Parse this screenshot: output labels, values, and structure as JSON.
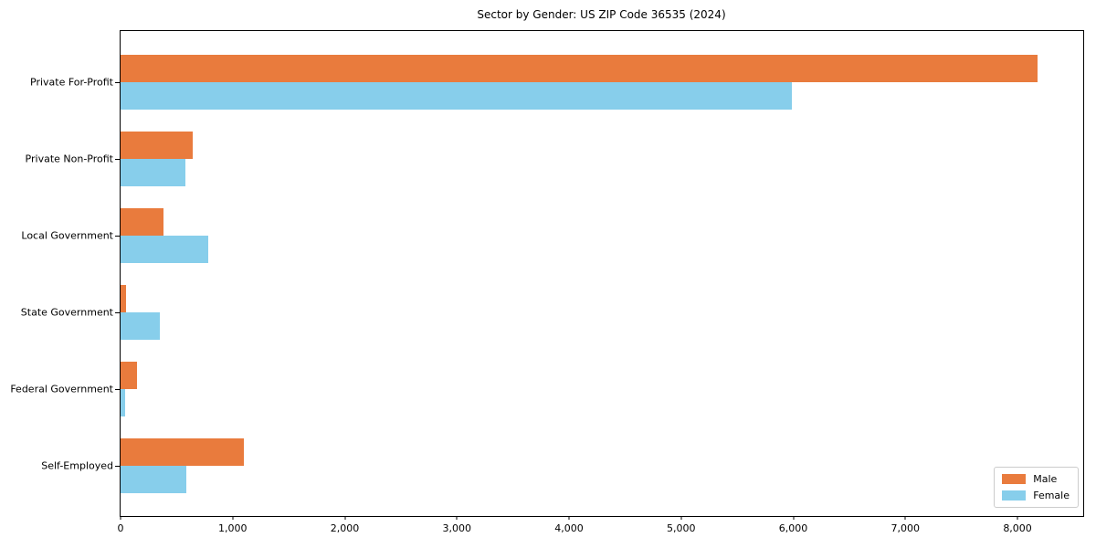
{
  "chart_data": {
    "type": "bar",
    "orientation": "horizontal",
    "title": "Sector by Gender: US ZIP Code 36535 (2024)",
    "xlabel": "",
    "ylabel": "",
    "categories": [
      "Private For-Profit",
      "Private Non-Profit",
      "Local Government",
      "State Government",
      "Federal Government",
      "Self-Employed"
    ],
    "series": [
      {
        "name": "Male",
        "color": "#e97b3d",
        "values": [
          8175,
          640,
          380,
          45,
          150,
          1100
        ]
      },
      {
        "name": "Female",
        "color": "#87ceeb",
        "values": [
          5985,
          580,
          785,
          350,
          40,
          585
        ]
      }
    ],
    "xlim": [
      0,
      8586
    ],
    "x_ticks": [
      0,
      1000,
      2000,
      3000,
      4000,
      5000,
      6000,
      7000,
      8000
    ],
    "x_tick_labels": [
      "0",
      "1,000",
      "2,000",
      "3,000",
      "4,000",
      "5,000",
      "6,000",
      "7,000",
      "8,000"
    ],
    "grid": false,
    "legend_position": "lower right",
    "legend": {
      "entries": [
        {
          "label": "Male",
          "color": "#e97b3d"
        },
        {
          "label": "Female",
          "color": "#87ceeb"
        }
      ]
    }
  }
}
